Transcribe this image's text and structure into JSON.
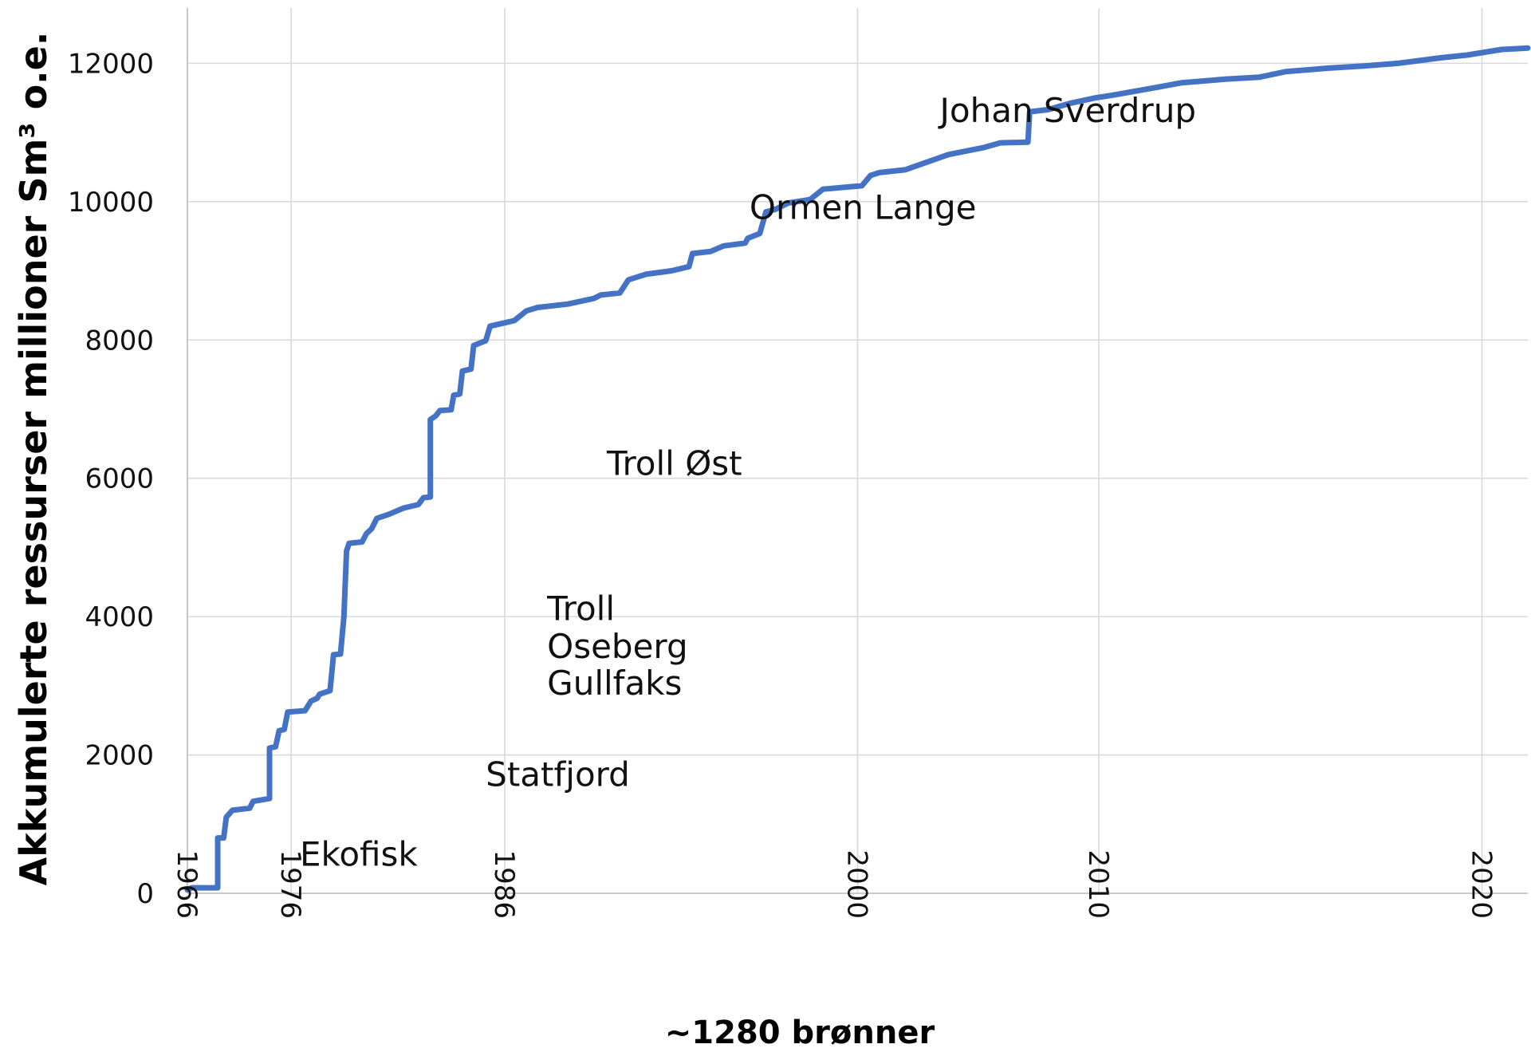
{
  "chart_data": {
    "type": "line",
    "xlabel": "~1280 brønner",
    "ylabel": "Akkumulerte ressurser millioner Sm³ o.e.",
    "colors": {
      "series": "#4472c4",
      "grid": "#d9d9d9"
    },
    "grid": true,
    "ylim": [
      0,
      12800
    ],
    "y_ticks": [
      "0",
      "2000",
      "4000",
      "6000",
      "8000",
      "10000",
      "12000"
    ],
    "x_ticks": [
      "1966",
      "1976",
      "1986",
      "2000",
      "2010",
      "2020"
    ],
    "annotations": [
      {
        "label": "Ekofisk",
        "x": 130,
        "y": 400
      },
      {
        "label": "Statfjord",
        "x": 345,
        "y": 1550
      },
      {
        "label": "Troll",
        "x": 416,
        "y": 3950
      },
      {
        "label": "Oseberg",
        "x": 416,
        "y": 3400
      },
      {
        "label": "Gullfaks",
        "x": 416,
        "y": 2870
      },
      {
        "label": "Troll Øst",
        "x": 485,
        "y": 6050
      },
      {
        "label": "Ormen Lange",
        "x": 650,
        "y": 9750
      },
      {
        "label": "Johan Sverdrup",
        "x": 870,
        "y": 11150
      }
    ],
    "series": [
      {
        "points": [
          [
            0,
            50
          ],
          [
            5,
            80
          ],
          [
            35,
            80
          ],
          [
            35,
            800
          ],
          [
            42,
            800
          ],
          [
            45,
            1100
          ],
          [
            52,
            1200
          ],
          [
            72,
            1230
          ],
          [
            76,
            1330
          ],
          [
            95,
            1370
          ],
          [
            95,
            2100
          ],
          [
            102,
            2120
          ],
          [
            106,
            2350
          ],
          [
            112,
            2370
          ],
          [
            116,
            2620
          ],
          [
            136,
            2640
          ],
          [
            143,
            2780
          ],
          [
            150,
            2820
          ],
          [
            153,
            2880
          ],
          [
            165,
            2930
          ],
          [
            169,
            3450
          ],
          [
            177,
            3460
          ],
          [
            181,
            4000
          ],
          [
            184,
            4950
          ],
          [
            187,
            5060
          ],
          [
            202,
            5080
          ],
          [
            207,
            5200
          ],
          [
            213,
            5270
          ],
          [
            219,
            5420
          ],
          [
            233,
            5480
          ],
          [
            250,
            5570
          ],
          [
            267,
            5620
          ],
          [
            273,
            5720
          ],
          [
            281,
            5730
          ],
          [
            281,
            6850
          ],
          [
            287,
            6900
          ],
          [
            292,
            6980
          ],
          [
            305,
            6990
          ],
          [
            308,
            7200
          ],
          [
            315,
            7220
          ],
          [
            318,
            7550
          ],
          [
            328,
            7580
          ],
          [
            331,
            7920
          ],
          [
            345,
            7990
          ],
          [
            350,
            8200
          ],
          [
            378,
            8280
          ],
          [
            392,
            8420
          ],
          [
            405,
            8470
          ],
          [
            440,
            8520
          ],
          [
            470,
            8600
          ],
          [
            478,
            8650
          ],
          [
            500,
            8680
          ],
          [
            510,
            8870
          ],
          [
            530,
            8950
          ],
          [
            560,
            9000
          ],
          [
            580,
            9060
          ],
          [
            584,
            9250
          ],
          [
            605,
            9280
          ],
          [
            620,
            9360
          ],
          [
            645,
            9400
          ],
          [
            648,
            9470
          ],
          [
            662,
            9540
          ],
          [
            669,
            9850
          ],
          [
            680,
            9890
          ],
          [
            695,
            9980
          ],
          [
            720,
            10030
          ],
          [
            735,
            10180
          ],
          [
            780,
            10230
          ],
          [
            790,
            10380
          ],
          [
            800,
            10420
          ],
          [
            830,
            10460
          ],
          [
            880,
            10680
          ],
          [
            920,
            10780
          ],
          [
            940,
            10850
          ],
          [
            972,
            10860
          ],
          [
            974,
            11300
          ],
          [
            995,
            11330
          ],
          [
            1020,
            11420
          ],
          [
            1050,
            11500
          ],
          [
            1070,
            11540
          ],
          [
            1120,
            11650
          ],
          [
            1150,
            11720
          ],
          [
            1200,
            11770
          ],
          [
            1240,
            11800
          ],
          [
            1270,
            11880
          ],
          [
            1320,
            11930
          ],
          [
            1360,
            11960
          ],
          [
            1400,
            12000
          ],
          [
            1450,
            12080
          ],
          [
            1480,
            12120
          ],
          [
            1520,
            12200
          ],
          [
            1550,
            12220
          ]
        ]
      }
    ]
  }
}
